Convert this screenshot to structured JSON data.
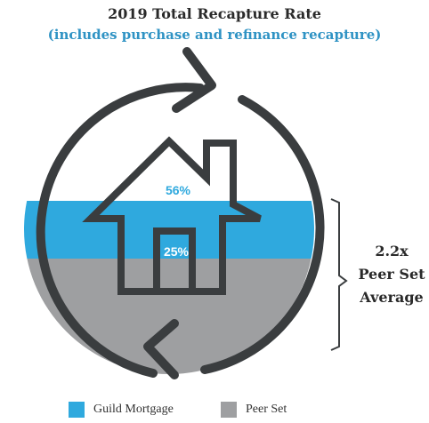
{
  "title": "2019 Total Recapture Rate",
  "subtitle": "(includes purchase and refinance recapture)",
  "chart_data": {
    "type": "area",
    "series": [
      {
        "name": "Guild Mortgage",
        "value": 56,
        "label": "56%",
        "color": "#2fa9de"
      },
      {
        "name": "Peer Set",
        "value": 25,
        "label": "25%",
        "color": "#9e9fa1"
      }
    ],
    "annotation": {
      "multiple": "2.2x",
      "line1": "Peer Set",
      "line2": "Average"
    }
  },
  "colors": {
    "outline": "#3a3d3f",
    "guild": "#2fa9de",
    "peer": "#9e9fa1",
    "title_accent": "#2f93c4"
  },
  "legend": [
    {
      "label": "Guild Mortgage",
      "color": "#2fa9de"
    },
    {
      "label": "Peer Set",
      "color": "#9e9fa1"
    }
  ]
}
